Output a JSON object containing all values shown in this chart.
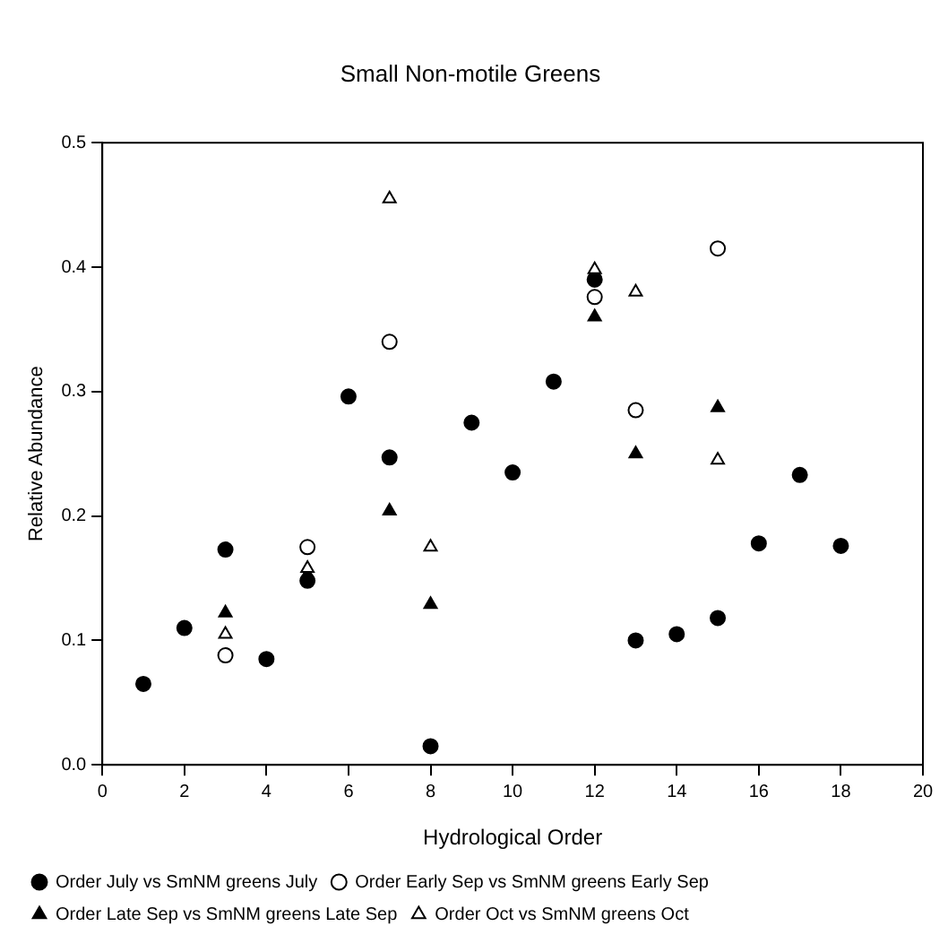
{
  "chart_data": {
    "type": "scatter",
    "title": "Small Non-motile Greens",
    "xlabel": "Hydrological Order",
    "ylabel": "Relative Abundance",
    "xlim": [
      0,
      20
    ],
    "xticks": [
      0,
      2,
      4,
      6,
      8,
      10,
      12,
      14,
      16,
      18,
      20
    ],
    "ylim": [
      0,
      0.5
    ],
    "yticks": [
      {
        "value": 0,
        "label": "0.0"
      },
      {
        "value": 0.1,
        "label": "0.1"
      },
      {
        "value": 0.2,
        "label": "0.2"
      },
      {
        "value": 0.3,
        "label": "0.3"
      },
      {
        "value": 0.4,
        "label": "0.4"
      },
      {
        "value": 0.5,
        "label": "0.5"
      }
    ],
    "grid": false,
    "legend": "bottom",
    "series": [
      {
        "name": "Order July vs SmNM greens July",
        "color": "#000000",
        "marker": "circle",
        "x": [
          1,
          2,
          3,
          4,
          5,
          6,
          7,
          8,
          9,
          10,
          11,
          12,
          13,
          14,
          15,
          16,
          17,
          18
        ],
        "values": [
          0.065,
          0.11,
          0.173,
          0.085,
          0.148,
          0.296,
          0.247,
          0.015,
          0.275,
          0.235,
          0.308,
          0.39,
          0.1,
          0.105,
          0.118,
          0.178,
          0.233,
          0.176
        ]
      },
      {
        "name": "Order Early Sep vs SmNM greens Early Sep",
        "color": "#000000",
        "marker": "circle",
        "x": [
          3,
          5,
          7,
          12,
          13,
          15
        ],
        "values": [
          0.088,
          0.175,
          0.34,
          0.376,
          0.285,
          0.415
        ]
      },
      {
        "name": "Order Late Sep vs SmNM greens Late Sep",
        "color": "#000000",
        "marker": "triangle",
        "x": [
          3,
          5,
          7,
          8,
          12,
          13,
          15
        ],
        "values": [
          0.122,
          0.153,
          0.204,
          0.129,
          0.36,
          0.25,
          0.287
        ]
      },
      {
        "name": "Order Oct vs SmNM greens Oct",
        "color": "#000000",
        "marker": "triangle",
        "x": [
          3,
          5,
          7,
          8,
          12,
          13,
          15
        ],
        "values": [
          0.105,
          0.158,
          0.455,
          0.175,
          0.398,
          0.38,
          0.245
        ]
      }
    ]
  }
}
